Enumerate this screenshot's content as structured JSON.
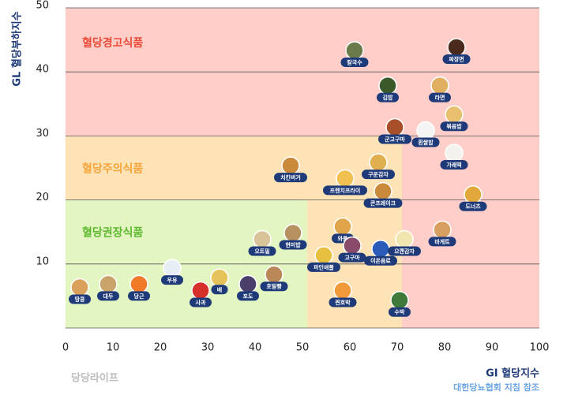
{
  "chart_data": {
    "type": "scatter",
    "xlabel": "GI 혈당지수",
    "ylabel": "GL 혈당부하지수",
    "note": "대한당뇨협회 지침 참조",
    "brand": "당당라이프",
    "xlim": [
      0,
      100
    ],
    "ylim": [
      0,
      50
    ],
    "xticks": [
      0,
      10,
      20,
      30,
      40,
      50,
      60,
      70,
      80,
      90,
      100
    ],
    "yticks": [
      10,
      20,
      30,
      40,
      50
    ],
    "grid": true,
    "color": "#1e3a78",
    "zones": [
      {
        "label": "혈당경고식품",
        "color": "#ffcec9",
        "label_color": "#ea4a38",
        "xlim": [
          0,
          100
        ],
        "ylim": [
          0,
          50
        ]
      },
      {
        "label": "혈당주의식품",
        "color": "#fde3b6",
        "label_color": "#f6a43a",
        "xlim": [
          0,
          71
        ],
        "ylim": [
          0,
          30
        ]
      },
      {
        "label": "혈당권장식품",
        "color": "#e3f5c1",
        "label_color": "#5db82f",
        "xlim": [
          0,
          51
        ],
        "ylim": [
          0,
          20
        ]
      }
    ],
    "labels": [
      "땅콩",
      "대두",
      "당근",
      "우유",
      "사과",
      "배",
      "포도",
      "호밀빵",
      "오트밀",
      "현미밥",
      "치킨버거",
      "파인애플",
      "찐호박",
      "와플",
      "고구마",
      "이온음료",
      "으깬감자",
      "수박",
      "바게트",
      "도너츠",
      "가래떡",
      "프렌치프라이",
      "콘프레이크",
      "구운감자",
      "군고구마",
      "흰쌀밥",
      "볶음밥",
      "김밥",
      "라면",
      "칼국수",
      "짜장면"
    ],
    "x": [
      3,
      9,
      15.5,
      22.5,
      28.5,
      32.5,
      38.5,
      44,
      41.5,
      48,
      47.5,
      54.5,
      58.5,
      58.5,
      60.5,
      66.5,
      71.5,
      70.5,
      79.5,
      86,
      82,
      59,
      67,
      66,
      69.5,
      76,
      82,
      68,
      79,
      61,
      82.5
    ],
    "values": [
      4.5,
      5,
      5,
      7.5,
      4,
      6,
      5,
      6.5,
      12,
      13,
      23.5,
      9.5,
      4,
      14,
      11,
      10.5,
      12,
      2.5,
      13.5,
      19,
      25.5,
      21.5,
      19.5,
      24,
      29.5,
      29,
      31.5,
      36,
      36,
      41.5,
      42
    ]
  }
}
